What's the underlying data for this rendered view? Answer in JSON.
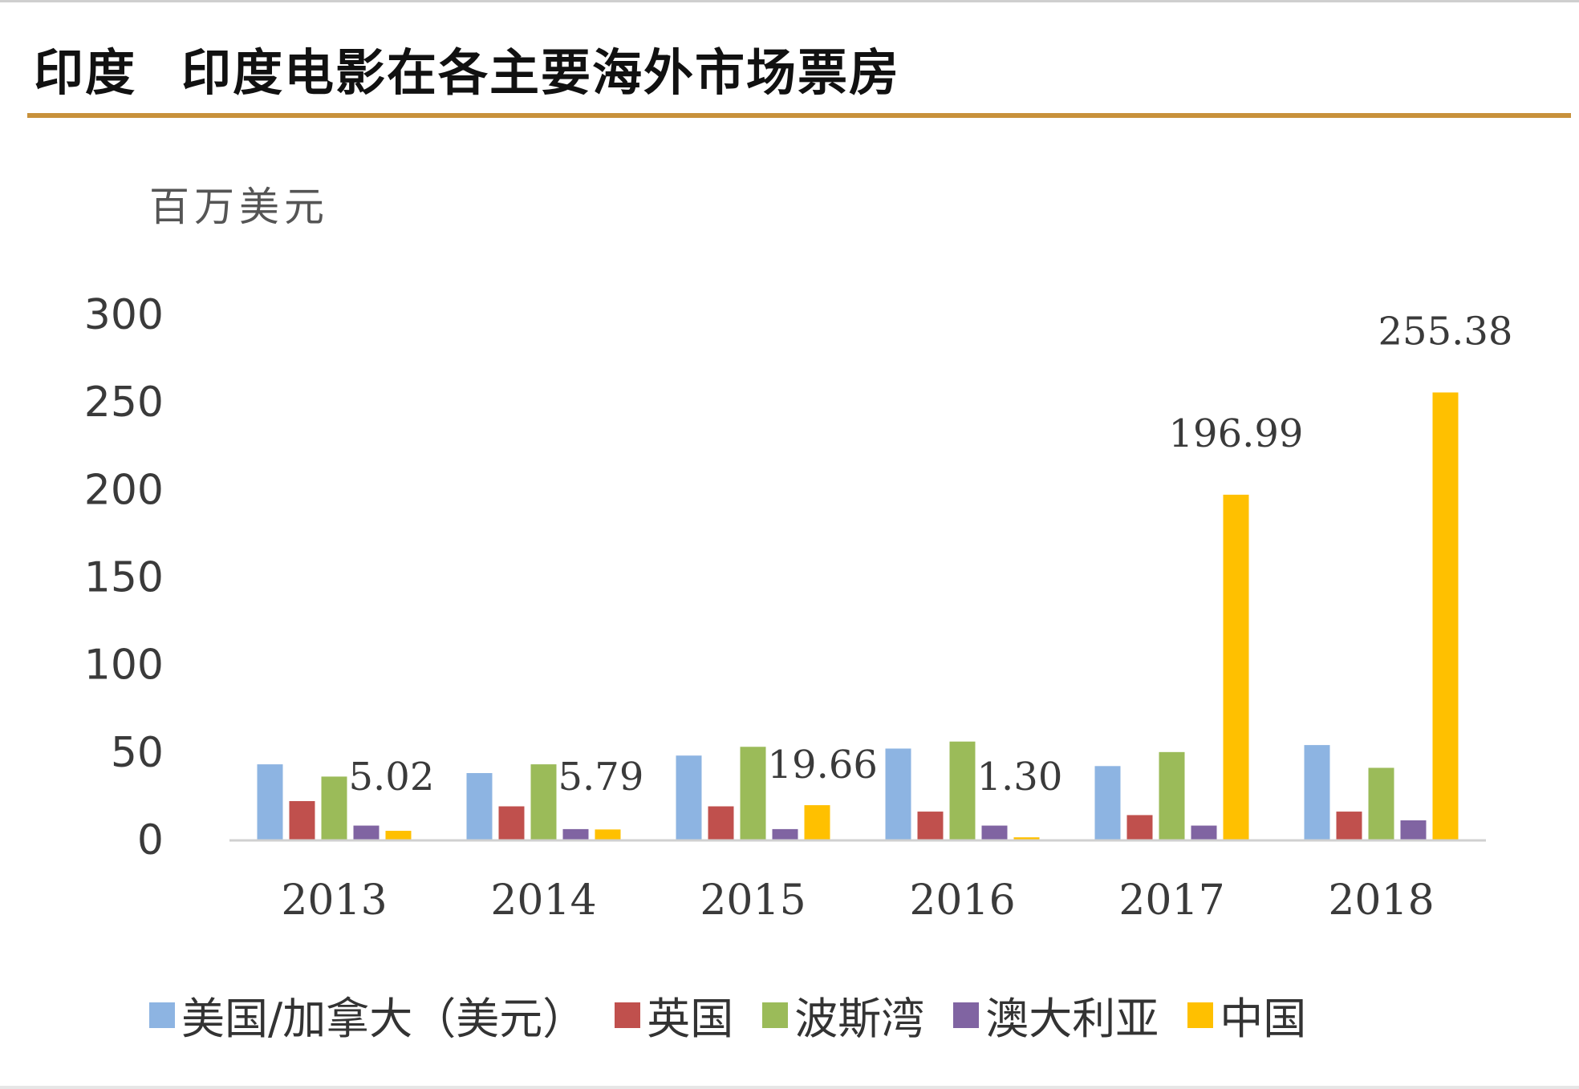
{
  "header": {
    "country": "印度",
    "title": "印度电影在各主要海外市场票房"
  },
  "chart_data": {
    "type": "bar",
    "unit_label": "百万美元",
    "categories": [
      "2013",
      "2014",
      "2015",
      "2016",
      "2017",
      "2018"
    ],
    "ylim": [
      0,
      300
    ],
    "yticks": [
      0,
      50,
      100,
      150,
      200,
      250,
      300
    ],
    "grid": false,
    "legend_position": "bottom",
    "series": [
      {
        "name": "美国/加拿大（美元）",
        "color": "#8db4e2",
        "values": [
          43,
          38,
          48,
          52,
          42,
          54
        ]
      },
      {
        "name": "英国",
        "color": "#c0504d",
        "values": [
          22,
          19,
          19,
          16,
          14,
          16
        ]
      },
      {
        "name": "波斯湾",
        "color": "#9bbb59",
        "values": [
          36,
          43,
          53,
          56,
          50,
          41
        ]
      },
      {
        "name": "澳大利亚",
        "color": "#8064a2",
        "values": [
          8,
          6,
          6,
          8,
          8,
          11
        ]
      },
      {
        "name": "中国",
        "color": "#ffc000",
        "values": [
          5.02,
          5.79,
          19.66,
          1.3,
          196.99,
          255.38
        ]
      }
    ],
    "data_labels": {
      "series": "中国",
      "labels": [
        "5.02",
        "5.79",
        "19.66",
        "1.30",
        "196.99",
        "255.38"
      ]
    }
  }
}
